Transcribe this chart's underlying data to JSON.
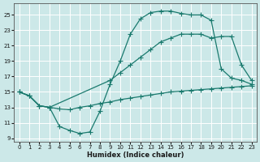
{
  "xlabel": "Humidex (Indice chaleur)",
  "bg_color": "#cce8e8",
  "line_color": "#1a7a6e",
  "grid_color": "#b8d8d8",
  "xlim": [
    -0.5,
    23.5
  ],
  "ylim": [
    8.5,
    26.5
  ],
  "xticks": [
    0,
    1,
    2,
    3,
    4,
    5,
    6,
    7,
    8,
    9,
    10,
    11,
    12,
    13,
    14,
    15,
    16,
    17,
    18,
    19,
    20,
    21,
    22,
    23
  ],
  "yticks": [
    9,
    11,
    13,
    15,
    17,
    19,
    21,
    23,
    25
  ],
  "curve1_x": [
    0,
    1,
    2,
    3,
    4,
    5,
    6,
    7,
    8,
    9,
    10,
    11,
    12,
    13,
    14,
    15,
    16,
    17,
    18,
    19,
    20,
    21,
    22,
    23
  ],
  "curve1_y": [
    15.0,
    14.5,
    13.2,
    13.0,
    10.5,
    10.0,
    9.6,
    9.8,
    12.5,
    16.0,
    19.0,
    22.5,
    24.5,
    25.3,
    25.5,
    25.5,
    25.2,
    25.0,
    25.0,
    24.3,
    18.0,
    16.8,
    16.5,
    16.0
  ],
  "curve2_x": [
    0,
    1,
    2,
    3,
    9,
    10,
    11,
    12,
    13,
    14,
    15,
    16,
    17,
    18,
    19,
    20,
    21,
    22,
    23
  ],
  "curve2_y": [
    15.0,
    14.5,
    13.2,
    13.0,
    16.5,
    17.5,
    18.5,
    19.5,
    20.5,
    21.5,
    22.0,
    22.5,
    22.5,
    22.5,
    22.0,
    22.2,
    22.2,
    18.5,
    16.5
  ],
  "curve3_x": [
    0,
    1,
    2,
    3,
    4,
    5,
    6,
    7,
    8,
    9,
    10,
    11,
    12,
    13,
    14,
    15,
    16,
    17,
    18,
    19,
    20,
    21,
    22,
    23
  ],
  "curve3_y": [
    15.0,
    14.5,
    13.2,
    13.0,
    12.8,
    12.7,
    13.0,
    13.2,
    13.5,
    13.7,
    14.0,
    14.2,
    14.4,
    14.6,
    14.8,
    15.0,
    15.1,
    15.2,
    15.3,
    15.4,
    15.5,
    15.6,
    15.7,
    15.8
  ]
}
